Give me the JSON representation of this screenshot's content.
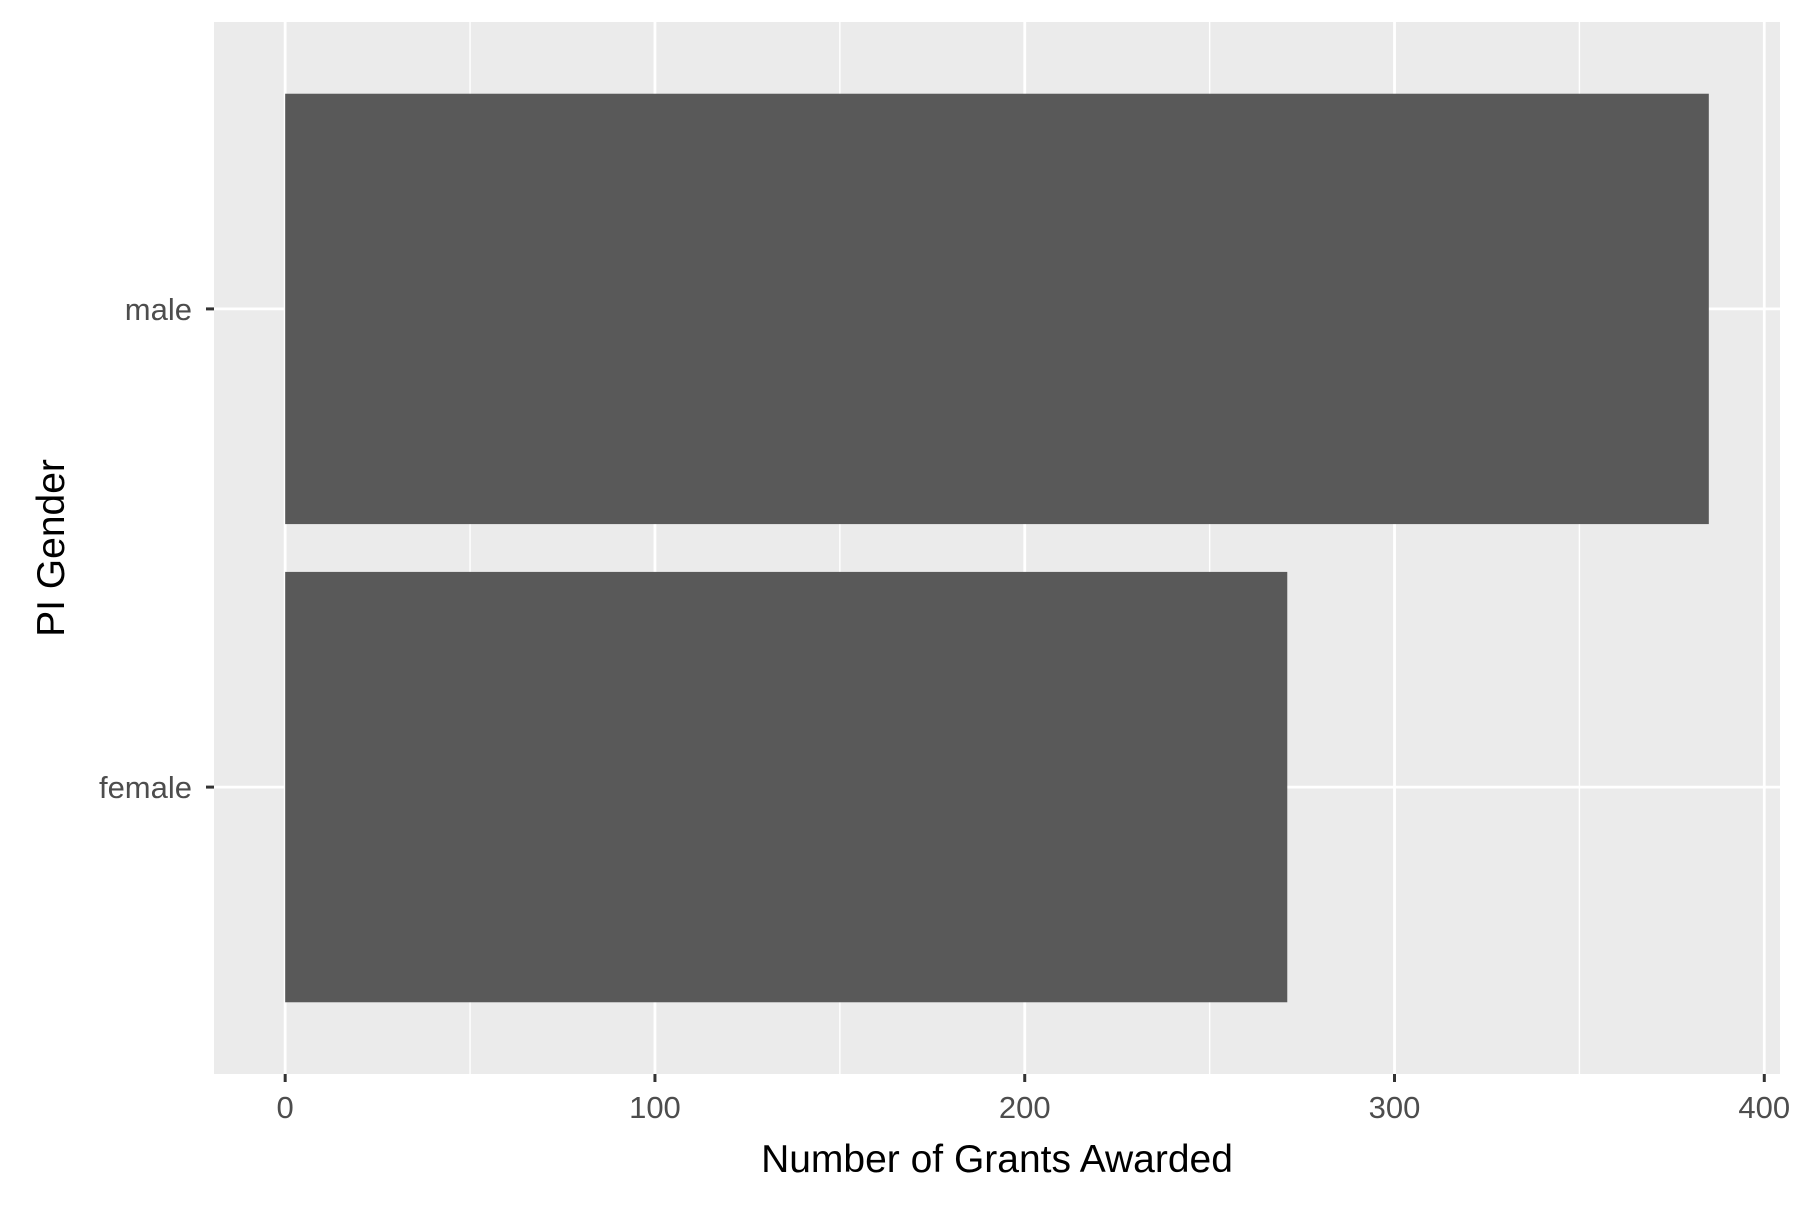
{
  "chart_data": {
    "type": "bar",
    "orientation": "horizontal",
    "categories": [
      "female",
      "male"
    ],
    "values": [
      271,
      385
    ],
    "title": "",
    "xlabel": "Number of Grants Awarded",
    "ylabel": "PI Gender",
    "xlim": [
      -19.25,
      404.25
    ],
    "xticks": [
      "0",
      "100",
      "200",
      "300",
      "400"
    ],
    "grid": true,
    "legend": "none",
    "colors": {
      "panel_background": "#ebebeb",
      "grid": "#ffffff",
      "bar": "#595959",
      "tick_label": "#4d4d4d",
      "axis_title": "#000000"
    }
  }
}
